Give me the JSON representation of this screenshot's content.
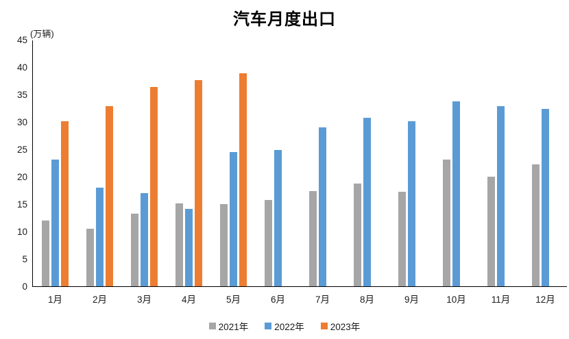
{
  "chart_data": {
    "type": "bar",
    "title": "汽车月度出口",
    "unit_label": "(万辆)",
    "categories": [
      "1月",
      "2月",
      "3月",
      "4月",
      "5月",
      "6月",
      "7月",
      "8月",
      "9月",
      "10月",
      "11月",
      "12月"
    ],
    "series": [
      {
        "name": "2021年",
        "color": "#A6A6A6",
        "values": [
          12.0,
          10.5,
          13.2,
          15.1,
          15.0,
          15.8,
          17.4,
          18.7,
          17.3,
          23.1,
          20.0,
          22.3
        ]
      },
      {
        "name": "2022年",
        "color": "#5B9BD5",
        "values": [
          23.1,
          18.0,
          17.0,
          14.1,
          24.5,
          24.9,
          29.0,
          30.8,
          30.1,
          33.7,
          32.9,
          32.4
        ]
      },
      {
        "name": "2023年",
        "color": "#ED7D31",
        "values": [
          30.1,
          32.9,
          36.4,
          37.6,
          38.9,
          null,
          null,
          null,
          null,
          null,
          null,
          null
        ]
      }
    ],
    "y_axis": {
      "min": 0,
      "max": 45,
      "step": 5,
      "ticks": [
        0,
        5,
        10,
        15,
        20,
        25,
        30,
        35,
        40,
        45
      ]
    },
    "grid": false,
    "legend_position": "bottom",
    "axis_color": "#000000",
    "background_color": "#ffffff"
  }
}
